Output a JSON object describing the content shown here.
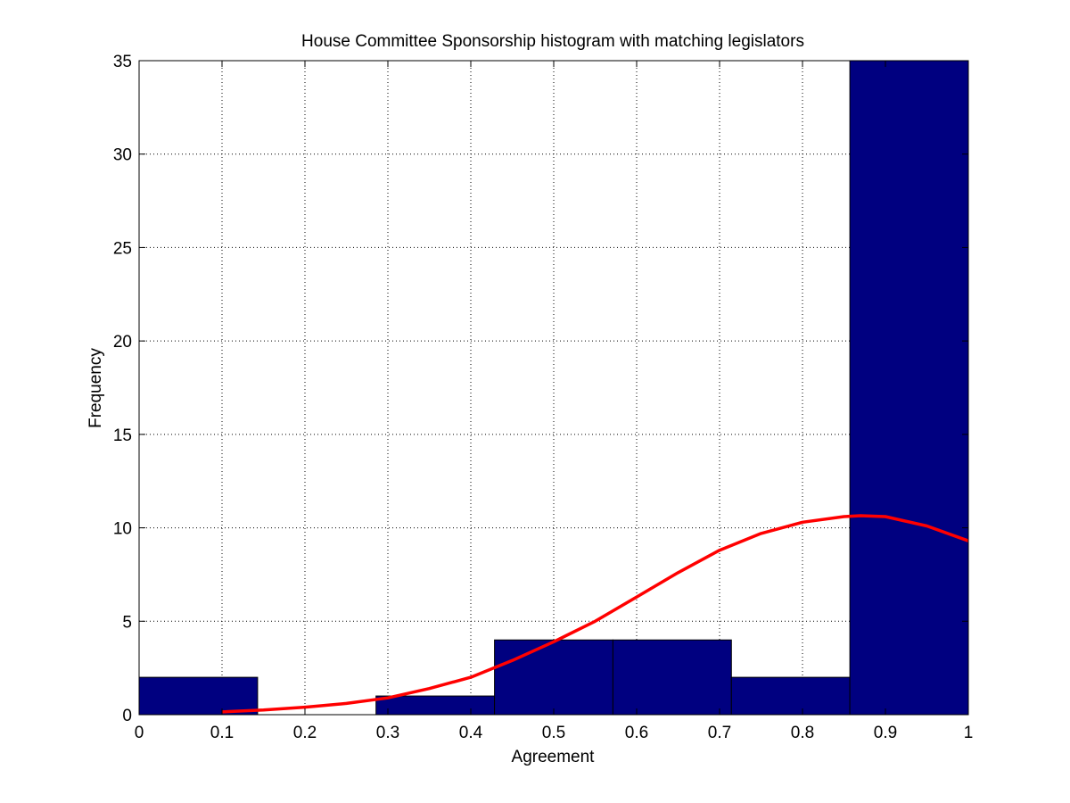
{
  "chart_data": {
    "type": "bar",
    "title": "House Committee Sponsorship histogram with matching legislators",
    "xlabel": "Agreement",
    "ylabel": "Frequency",
    "xlim": [
      0,
      1
    ],
    "ylim": [
      0,
      35
    ],
    "xticks": [
      "0",
      "0.1",
      "0.2",
      "0.3",
      "0.4",
      "0.5",
      "0.6",
      "0.7",
      "0.8",
      "0.9",
      "1"
    ],
    "yticks": [
      "0",
      "5",
      "10",
      "15",
      "20",
      "25",
      "30",
      "35"
    ],
    "grid": true,
    "bins": [
      {
        "x0": 0.0,
        "x1": 0.1429,
        "value": 2
      },
      {
        "x0": 0.1429,
        "x1": 0.2857,
        "value": 0
      },
      {
        "x0": 0.2857,
        "x1": 0.4286,
        "value": 1
      },
      {
        "x0": 0.4286,
        "x1": 0.5714,
        "value": 4
      },
      {
        "x0": 0.5714,
        "x1": 0.7143,
        "value": 4
      },
      {
        "x0": 0.7143,
        "x1": 0.8571,
        "value": 2
      },
      {
        "x0": 0.8571,
        "x1": 1.0,
        "value": 35
      }
    ],
    "fit_curve": {
      "x": [
        0.1,
        0.15,
        0.2,
        0.25,
        0.3,
        0.35,
        0.4,
        0.45,
        0.5,
        0.55,
        0.6,
        0.65,
        0.7,
        0.75,
        0.8,
        0.85,
        0.87,
        0.9,
        0.95,
        1.0
      ],
      "y": [
        0.15,
        0.25,
        0.4,
        0.6,
        0.9,
        1.4,
        2.0,
        2.9,
        3.9,
        5.0,
        6.3,
        7.6,
        8.8,
        9.7,
        10.3,
        10.6,
        10.65,
        10.6,
        10.1,
        9.3
      ]
    },
    "colors": {
      "bar": "#000080",
      "curve": "#ff0000",
      "grid": "#000000"
    }
  }
}
